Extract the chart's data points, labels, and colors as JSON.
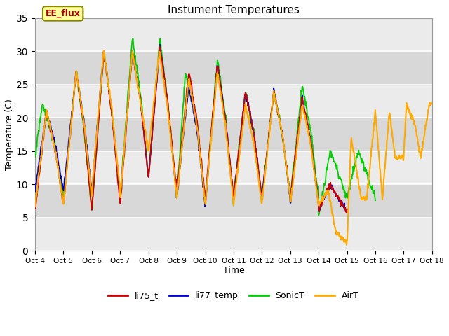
{
  "title": "Instument Temperatures",
  "xlabel": "Time",
  "ylabel": "Temperature (C)",
  "ylim": [
    0,
    35
  ],
  "xlim": [
    0,
    14
  ],
  "tick_labels": [
    "Oct 4",
    "Oct 5",
    "Oct 6",
    "Oct 7",
    "Oct 8",
    "Oct 9",
    "Oct 10",
    "Oct 11",
    "Oct 12",
    "Oct 13",
    "Oct 14",
    "Oct 15",
    "Oct 16",
    "Oct 17",
    "Oct 18"
  ],
  "colors": {
    "li75_t": "#cc0000",
    "li77_temp": "#0000cc",
    "SonicT": "#00cc00",
    "AirT": "#ffaa00"
  },
  "EE_flux_box_color": "#ffff99",
  "EE_flux_text_color": "#aa0000",
  "background_color": "#ffffff",
  "plot_bg_color": "#ebebeb",
  "grid_color": "#ffffff",
  "band_color": "#d8d8d8",
  "band_ranges": [
    [
      5,
      10
    ],
    [
      15,
      20
    ],
    [
      25,
      30
    ]
  ]
}
